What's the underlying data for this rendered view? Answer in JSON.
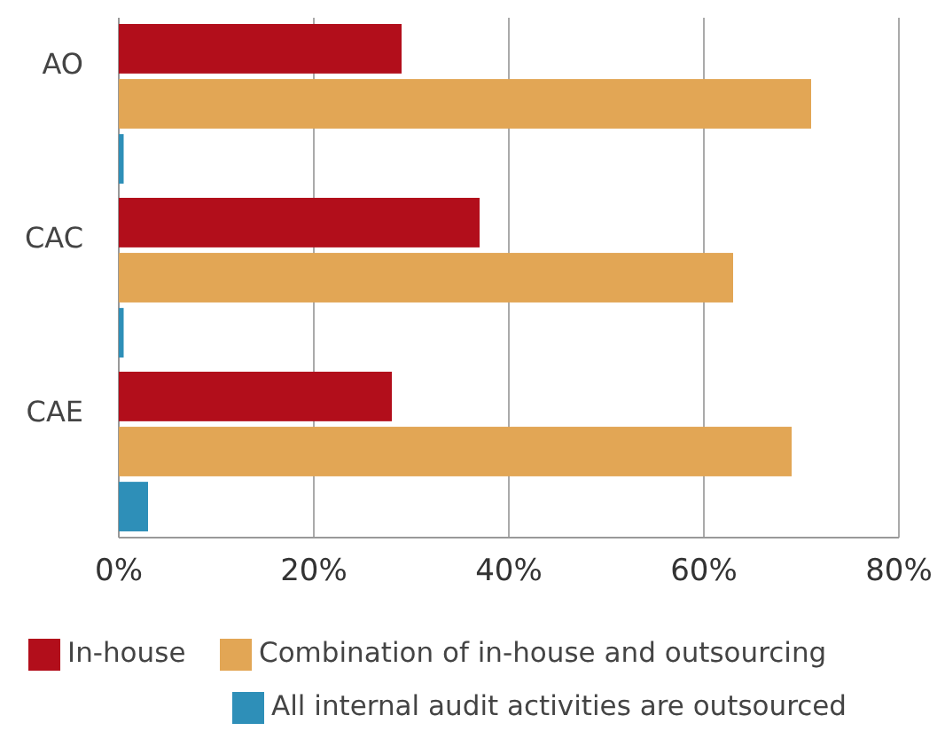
{
  "chart_data": {
    "type": "bar",
    "orientation": "horizontal",
    "categories": [
      "AO",
      "CAC",
      "CAE"
    ],
    "series": [
      {
        "name": "In-house",
        "color": "#b20e1b",
        "values": [
          29,
          37,
          28
        ]
      },
      {
        "name": "Combination of in-house and outsourcing",
        "color": "#e2a655",
        "values": [
          71,
          63,
          69
        ]
      },
      {
        "name": "All internal audit activities are outsourced",
        "color": "#2e8fb8",
        "values": [
          0.5,
          0.5,
          3
        ]
      }
    ],
    "xlim": [
      0,
      80
    ],
    "xticks": [
      {
        "value": 0,
        "label": "0%"
      },
      {
        "value": 20,
        "label": "20%"
      },
      {
        "value": 40,
        "label": "40%"
      },
      {
        "value": 60,
        "label": "60%"
      },
      {
        "value": 80,
        "label": "80%"
      }
    ],
    "grid": "x",
    "legend": "bottom"
  }
}
